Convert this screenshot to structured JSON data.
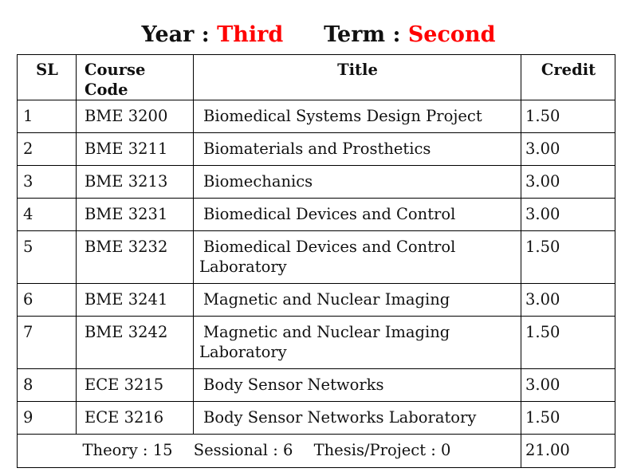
{
  "heading": {
    "year_label": "Year",
    "year_value": "Third",
    "term_label": "Term",
    "term_value": "Second",
    "separator": ":"
  },
  "table": {
    "headers": {
      "sl": "SL",
      "code": "Course Code",
      "title": "Title",
      "credit": "Credit"
    },
    "rows": [
      {
        "sl": "1",
        "code": "BME 3200",
        "title_line1": "Biomedical Systems Design Project",
        "title_line2": "",
        "credit": "1.50"
      },
      {
        "sl": "2",
        "code": "BME 3211",
        "title_line1": "Biomaterials and Prosthetics",
        "title_line2": "",
        "credit": "3.00"
      },
      {
        "sl": "3",
        "code": "BME 3213",
        "title_line1": "Biomechanics",
        "title_line2": "",
        "credit": "3.00"
      },
      {
        "sl": "4",
        "code": "BME 3231",
        "title_line1": "Biomedical Devices and Control",
        "title_line2": "",
        "credit": "3.00"
      },
      {
        "sl": "5",
        "code": "BME 3232",
        "title_line1": "Biomedical Devices and Control",
        "title_line2": "Laboratory",
        "credit": "1.50"
      },
      {
        "sl": "6",
        "code": "BME 3241",
        "title_line1": "Magnetic and Nuclear Imaging",
        "title_line2": "",
        "credit": "3.00"
      },
      {
        "sl": "7",
        "code": "BME 3242",
        "title_line1": "Magnetic and Nuclear Imaging",
        "title_line2": "Laboratory",
        "credit": "1.50"
      },
      {
        "sl": "8",
        "code": "ECE 3215",
        "title_line1": "Body Sensor Networks",
        "title_line2": "",
        "credit": "3.00"
      },
      {
        "sl": "9",
        "code": "ECE 3216",
        "title_line1": "Body Sensor Networks Laboratory",
        "title_line2": "",
        "credit": "1.50"
      }
    ],
    "summary": {
      "theory": "Theory : 15",
      "sessional": "Sessional : 6",
      "thesis": "Thesis/Project : 0",
      "total_credit": "21.00"
    }
  },
  "colors": {
    "accent": "#ff0000",
    "text": "#111111",
    "border": "#000000"
  }
}
